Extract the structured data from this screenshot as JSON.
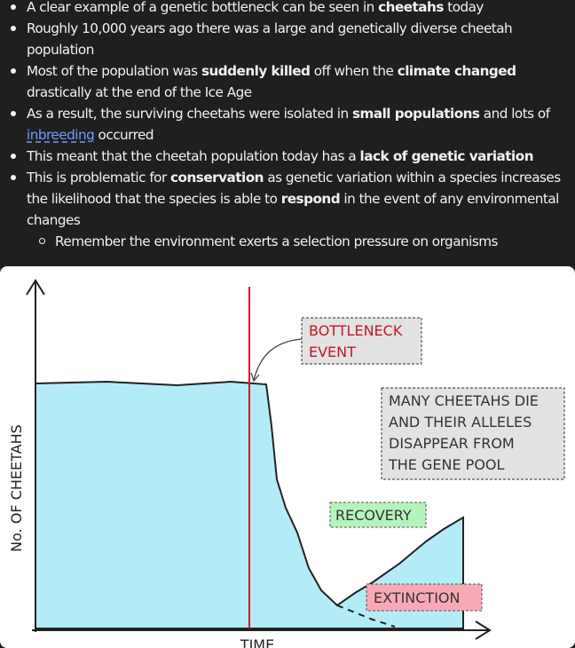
{
  "notes": [
    [
      {
        "text": "A clear example of a genetic bottleneck can be seen in "
      },
      {
        "bold": "cheetahs"
      },
      {
        "text": " today"
      }
    ],
    [
      {
        "text": "Roughly 10,000 years ago there was a large and genetically diverse cheetah population"
      }
    ],
    [
      {
        "text": "Most of the population was "
      },
      {
        "bold": "suddenly killed"
      },
      {
        "text": " off when the "
      },
      {
        "bold": "climate changed"
      },
      {
        "text": " drastically at the end of the Ice Age"
      }
    ],
    [
      {
        "text": "As a result, the surviving cheetahs were isolated in "
      },
      {
        "bold": "small populations"
      },
      {
        "text": " and lots of "
      },
      {
        "link": "inbreeding"
      },
      {
        "text": " occurred"
      }
    ],
    [
      {
        "text": "This meant that the cheetah population today has a "
      },
      {
        "bold": "lack of genetic variation"
      }
    ],
    [
      {
        "text": "This is problematic for "
      },
      {
        "bold": "conservation"
      },
      {
        "text": " as genetic variation within a species increases the likelihood that the species is able to "
      },
      {
        "bold": "respond"
      },
      {
        "text": " in the event of any environmental changes"
      }
    ]
  ],
  "sub_note": "Remember the environment exerts a selection pressure on organisms",
  "diagram": {
    "bottleneck": [
      "BOTTLENECK",
      "EVENT"
    ],
    "note": [
      "MANY CHEETAHS DIE",
      "AND THEIR ALLELES",
      "DISAPPEAR FROM",
      "THE GENE POOL"
    ],
    "recovery": "RECOVERY",
    "extinction": "EXTINCTION",
    "y_axis": "No. OF CHEETAHS",
    "x_axis": "TIME"
  }
}
